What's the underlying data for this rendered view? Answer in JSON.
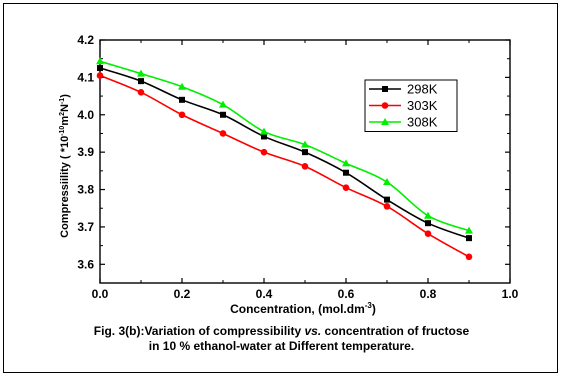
{
  "chart_data": {
    "type": "line",
    "xlabel": "Concentration, (mol.dm",
    "xlabel_sup": "-3",
    "xlabel_close": ")",
    "ylabel": "Compressiility ( *10",
    "ylabel_sup1": "-10",
    "ylabel_mid": "m",
    "ylabel_sup2": "2",
    "ylabel_mid2": "N",
    "ylabel_sup3": "-1",
    "ylabel_close": ")",
    "xlim": [
      0.0,
      1.0
    ],
    "ylim": [
      3.55,
      4.2
    ],
    "xticks": [
      "0.0",
      "0.2",
      "0.4",
      "0.6",
      "0.8",
      "1.0"
    ],
    "yticks": [
      "3.6",
      "3.7",
      "3.8",
      "3.9",
      "4.0",
      "4.1",
      "4.2"
    ],
    "x": [
      0.0,
      0.1,
      0.2,
      0.3,
      0.4,
      0.5,
      0.6,
      0.7,
      0.8,
      0.9
    ],
    "series": [
      {
        "name": "298K",
        "color": "#000000",
        "marker": "square",
        "values": [
          4.125,
          4.09,
          4.04,
          4.0,
          3.942,
          3.9,
          3.845,
          3.773,
          3.71,
          3.67
        ]
      },
      {
        "name": "303K",
        "color": "#ff0000",
        "marker": "circle",
        "values": [
          4.105,
          4.06,
          4.0,
          3.95,
          3.9,
          3.862,
          3.805,
          3.755,
          3.682,
          3.62
        ]
      },
      {
        "name": "308K",
        "color": "#00ee00",
        "marker": "triangle",
        "values": [
          4.143,
          4.11,
          4.075,
          4.027,
          3.955,
          3.92,
          3.87,
          3.82,
          3.73,
          3.69
        ]
      }
    ],
    "legend_position": "top-right"
  },
  "caption": {
    "line1_a": "Fig. 3(b):Variation of compressibility ",
    "line1_italic": "vs.",
    "line1_b": " concentration of fructose",
    "line2": "in 10 % ethanol-water at Different temperature."
  }
}
